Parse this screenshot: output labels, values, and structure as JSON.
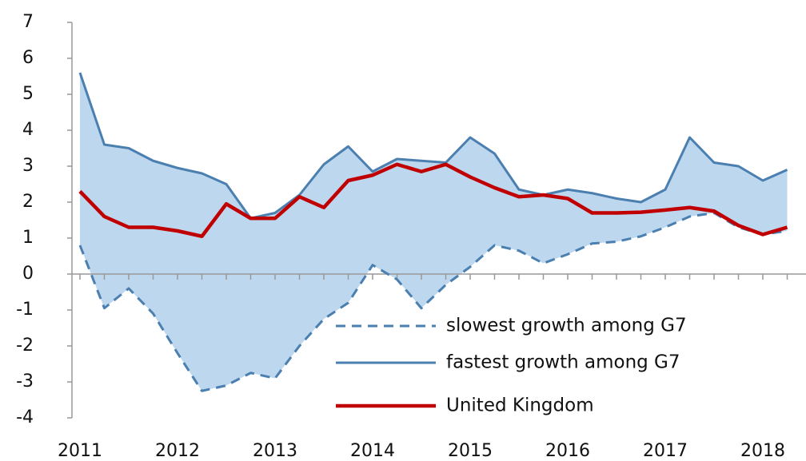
{
  "chart_data": {
    "type": "line",
    "categories": [
      "2011",
      null,
      null,
      null,
      "2012",
      null,
      null,
      null,
      "2013",
      null,
      null,
      null,
      "2014",
      null,
      null,
      null,
      "2015",
      null,
      null,
      null,
      "2016",
      null,
      null,
      null,
      "2017",
      null,
      null,
      null,
      "2018",
      null
    ],
    "series": [
      {
        "name": "slowest growth among G7",
        "color": "#4a7fb0",
        "dash": true,
        "values": [
          0.8,
          -0.95,
          -0.4,
          -1.1,
          -2.2,
          -3.25,
          -3.1,
          -2.75,
          -2.9,
          -2.0,
          -1.25,
          -0.8,
          0.25,
          -0.15,
          -0.95,
          -0.3,
          0.2,
          0.8,
          0.65,
          0.3,
          0.55,
          0.85,
          0.9,
          1.05,
          1.3,
          1.6,
          1.7,
          1.3,
          1.1,
          1.2
        ]
      },
      {
        "name": "fastest growth among G7",
        "color": "#4a7fb0",
        "values": [
          5.6,
          3.6,
          3.5,
          3.15,
          2.95,
          2.8,
          2.5,
          1.55,
          1.7,
          2.2,
          3.05,
          3.55,
          2.85,
          3.2,
          3.15,
          3.1,
          3.8,
          3.35,
          2.35,
          2.2,
          2.35,
          2.25,
          2.1,
          2.0,
          2.35,
          3.8,
          3.1,
          3.0,
          2.6,
          2.9
        ]
      },
      {
        "name": "United Kingdom",
        "color": "#c00000",
        "values": [
          2.3,
          1.6,
          1.3,
          1.3,
          1.2,
          1.05,
          1.95,
          1.55,
          1.55,
          2.15,
          1.85,
          2.6,
          2.75,
          3.05,
          2.85,
          3.05,
          2.7,
          2.4,
          2.15,
          2.2,
          2.1,
          1.7,
          1.7,
          1.72,
          1.78,
          1.85,
          1.75,
          1.35,
          1.1,
          1.3
        ]
      }
    ],
    "band_color": "#bdd7ee",
    "ylim": [
      -4,
      7
    ],
    "yticks": [
      -4,
      -3,
      -2,
      -1,
      0,
      1,
      2,
      3,
      4,
      5,
      6,
      7
    ],
    "grid": false,
    "legend": "lower right"
  }
}
